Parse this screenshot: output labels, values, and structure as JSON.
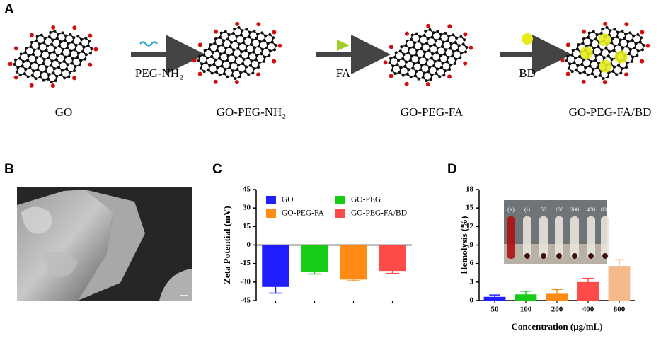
{
  "panels": [
    "A",
    "B",
    "C",
    "D"
  ],
  "scheme": {
    "steps": [
      "PEG-NH₂",
      "FA",
      "BD"
    ],
    "products": [
      "GO",
      "GO-PEG-NH₂",
      "GO-PEG-FA",
      "GO-PEG-FA/BD"
    ]
  },
  "chart_data": [
    {
      "type": "bar",
      "ylabel": "Zeta Potential (mV)",
      "categories": [
        "GO",
        "GO-PEG",
        "GO-PEG-FA",
        "GO-PEG-FA/BD"
      ],
      "values": [
        -34,
        -22,
        -28,
        -21
      ],
      "errors": [
        5,
        1.5,
        1,
        2
      ],
      "colors": [
        "#1f1fff",
        "#16cc16",
        "#ff8a14",
        "#ff4a4a"
      ],
      "ylim": [
        -45,
        45
      ],
      "yticks": [
        -45,
        -30,
        -15,
        0,
        15,
        30,
        45
      ],
      "legend": true
    },
    {
      "type": "bar",
      "xlabel": "Concentration (μg/mL)",
      "ylabel": "Hemolysis (%)",
      "categories": [
        "50",
        "100",
        "200",
        "400",
        "800"
      ],
      "values": [
        0.6,
        1.0,
        1.1,
        3.0,
        5.6
      ],
      "errors": [
        0.3,
        0.5,
        0.7,
        0.6,
        1.0
      ],
      "colors": [
        "#1f1fff",
        "#16cc16",
        "#ff8a14",
        "#ff4a4a",
        "#f5b98a"
      ],
      "ylim": [
        0,
        18
      ],
      "yticks": [
        0,
        3,
        6,
        9,
        12,
        15,
        18
      ],
      "legend": false,
      "inset_labels": [
        "(+)",
        "(-)",
        "50",
        "100",
        "200",
        "400",
        "800"
      ]
    }
  ]
}
